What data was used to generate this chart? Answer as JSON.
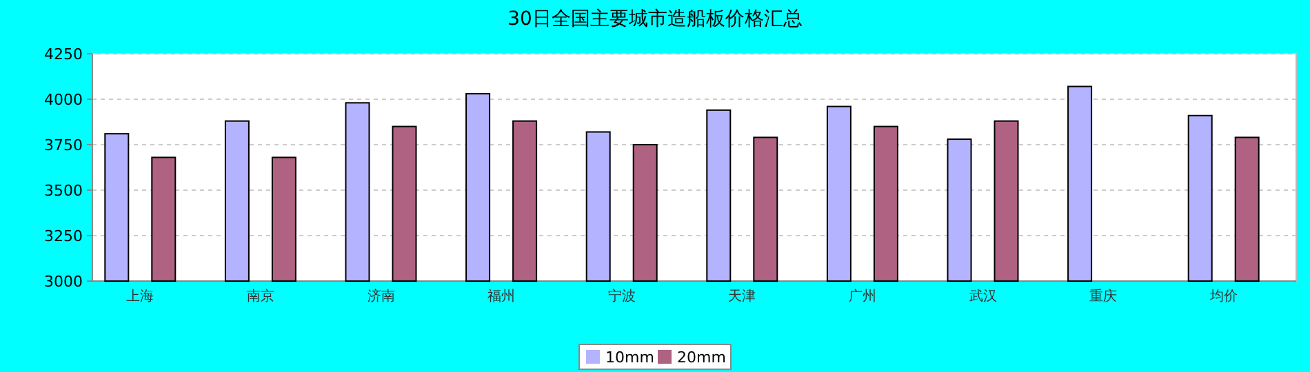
{
  "chart_data": {
    "type": "bar",
    "title": "30日全国主要城市造船板价格汇总",
    "categories": [
      "上海",
      "南京",
      "济南",
      "福州",
      "宁波",
      "天津",
      "广州",
      "武汉",
      "重庆",
      "均价"
    ],
    "series": [
      {
        "name": "10mm",
        "color": "#b3b3ff",
        "values": [
          3810,
          3880,
          3980,
          4030,
          3820,
          3940,
          3960,
          3780,
          4070,
          3910
        ]
      },
      {
        "name": "20mm",
        "color": "#b06283",
        "values": [
          3680,
          3680,
          3850,
          3880,
          3750,
          3790,
          3850,
          3880,
          null,
          3790
        ]
      }
    ],
    "ylim": [
      3000,
      4250
    ],
    "yticks": [
      3000,
      3250,
      3500,
      3750,
      4000,
      4250
    ],
    "grid": "y",
    "legend": "bottom"
  }
}
